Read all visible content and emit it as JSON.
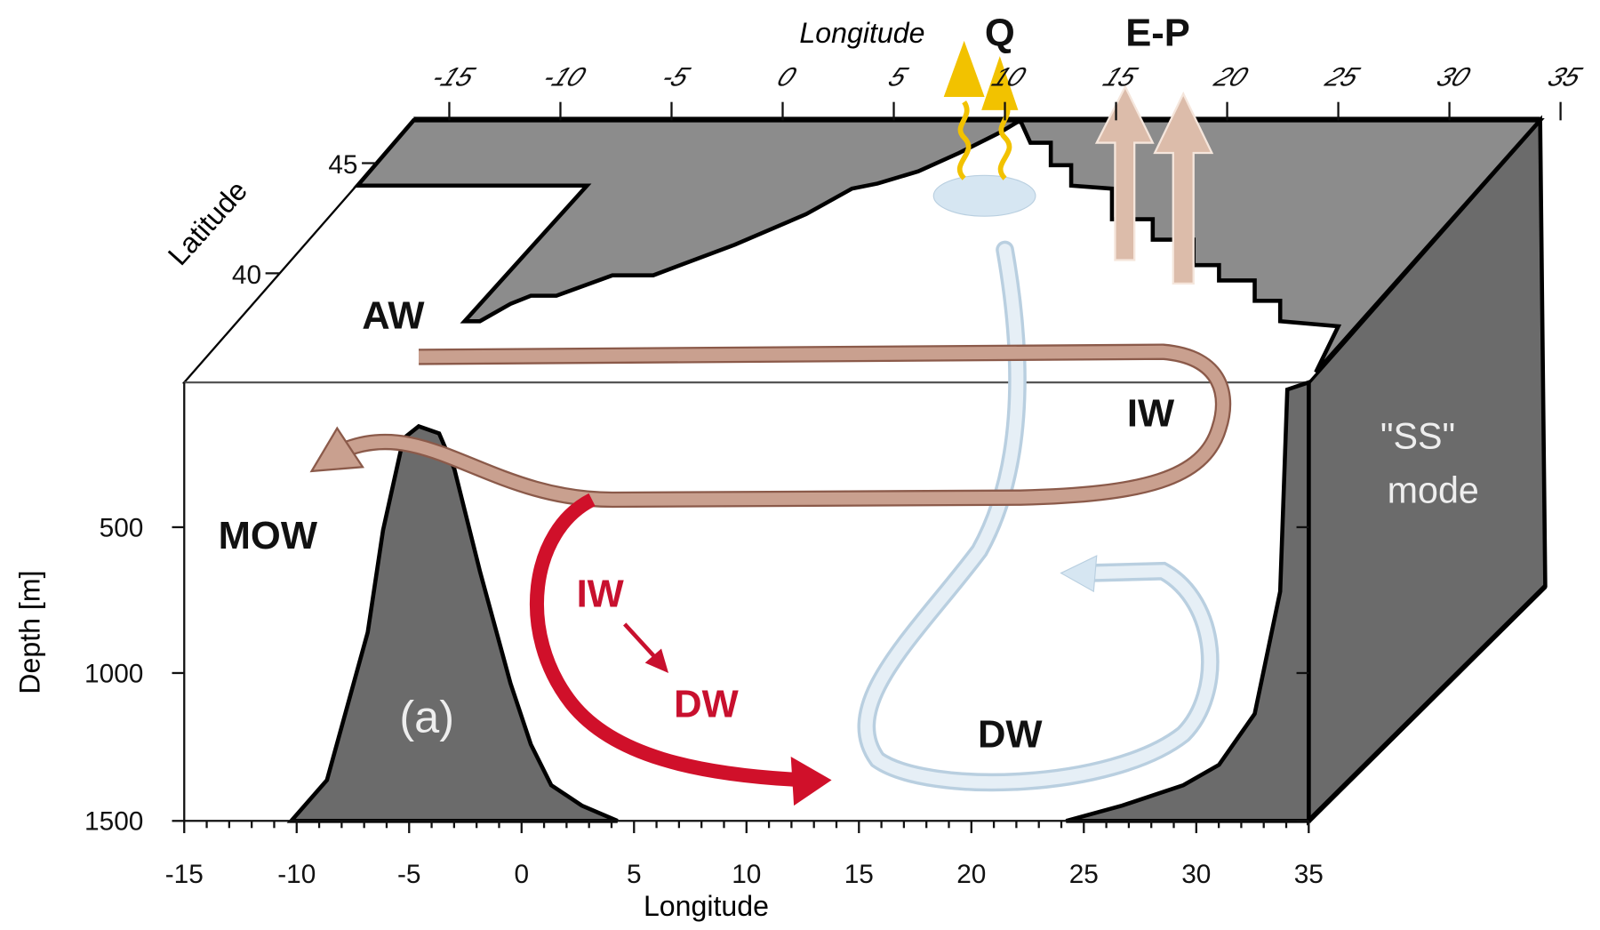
{
  "top_axis": {
    "title": "Longitude",
    "ticks": [
      -15,
      -10,
      -5,
      0,
      5,
      10,
      15,
      20,
      25,
      30,
      35
    ]
  },
  "latitude_axis": {
    "title": "Latitude",
    "ticks": [
      45,
      40
    ]
  },
  "depth_axis": {
    "title": "Depth [m]",
    "ticks": [
      500,
      1000,
      1500
    ]
  },
  "bottom_axis": {
    "title": "Longitude",
    "ticks": [
      -15,
      -10,
      -5,
      0,
      5,
      10,
      15,
      20,
      25,
      30,
      35
    ]
  },
  "labels": {
    "q": "Q",
    "e_p": "E-P",
    "aw": "AW",
    "iw_upper": "IW",
    "ss_mode": [
      "\"SS\"",
      "mode"
    ],
    "mow": "MOW",
    "iw_red": "IW",
    "dw_red": "DW",
    "dw": "DW",
    "panel": "(a)"
  }
}
